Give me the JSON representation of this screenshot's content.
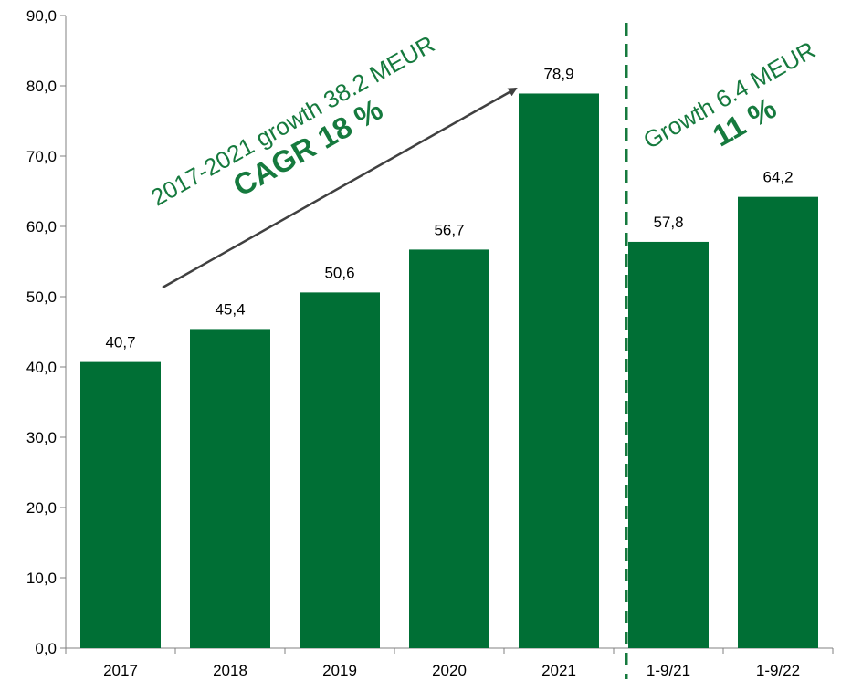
{
  "chart_data": {
    "type": "bar",
    "categories": [
      "2017",
      "2018",
      "2019",
      "2020",
      "2021",
      "1-9/21",
      "1-9/22"
    ],
    "values": [
      40.7,
      45.4,
      50.6,
      56.7,
      78.9,
      57.8,
      64.2
    ],
    "value_labels": [
      "40,7",
      "45,4",
      "50,6",
      "56,7",
      "78,9",
      "57,8",
      "64,2"
    ],
    "ylim": [
      0,
      90
    ],
    "yticks": [
      0,
      10,
      20,
      30,
      40,
      50,
      60,
      70,
      80,
      90
    ],
    "ytick_labels": [
      "0,0",
      "10,0",
      "20,0",
      "30,0",
      "40,0",
      "50,0",
      "60,0",
      "70,0",
      "80,0",
      "90,0"
    ],
    "grid": false,
    "bar_color": "#006f35",
    "annotation_color": "#167a3e",
    "annotations": [
      {
        "name": "growth-2017-2021",
        "line1": "2017-2021 growth 38.2 MEUR",
        "line2": "CAGR 18 %"
      },
      {
        "name": "growth-1-9",
        "line1": "Growth 6.4 MEUR",
        "line2": "11 %"
      }
    ]
  }
}
